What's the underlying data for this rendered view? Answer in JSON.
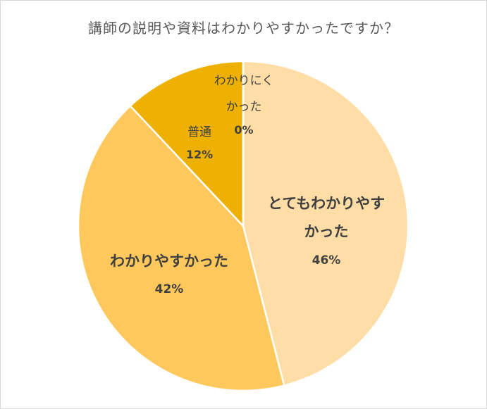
{
  "chart_data": {
    "type": "pie",
    "title": "講師の説明や資料はわかりやすかったですか？",
    "slices": [
      {
        "label_lines": [
          "とてもわかりやす",
          "かった"
        ],
        "pct_label": "46%",
        "value": 46,
        "color": "#FFDDA6"
      },
      {
        "label_lines": [
          "わかりやすかった"
        ],
        "pct_label": "42%",
        "value": 42,
        "color": "#FFC85C"
      },
      {
        "label_lines": [
          "普通"
        ],
        "pct_label": "12%",
        "value": 12,
        "color": "#EEB102"
      },
      {
        "label_lines": [
          "わかりにく",
          "かった"
        ],
        "pct_label": "0%",
        "value": 0,
        "color": "#C08A00"
      }
    ],
    "start": "12-o'clock",
    "direction": "clockwise",
    "legend": "none",
    "data_labels": "inside"
  }
}
